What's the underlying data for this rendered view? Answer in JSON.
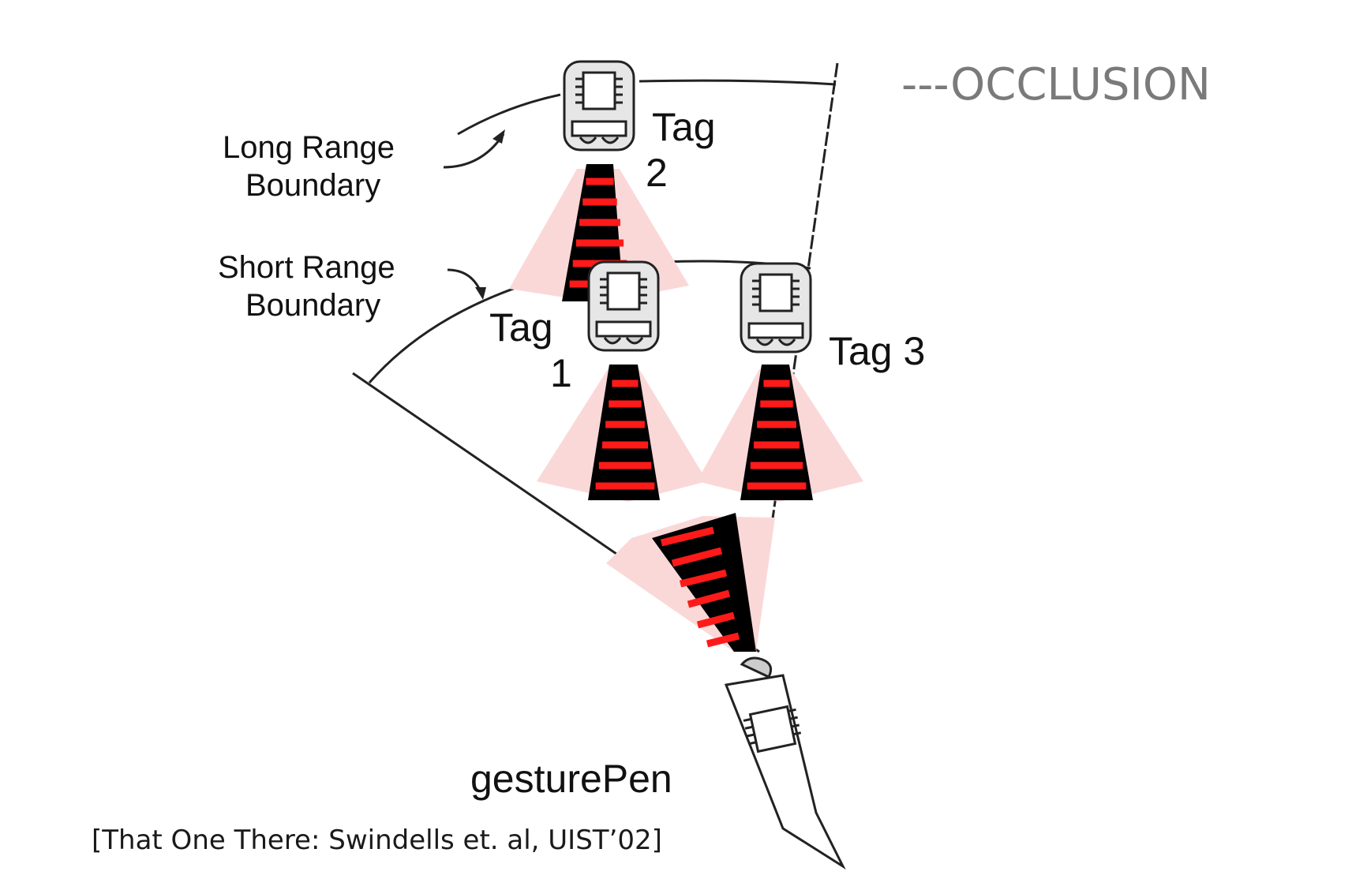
{
  "title": "---OCCLUSION",
  "citation": "[That One There: Swindells et. al, UIST’02]",
  "labels": {
    "long_range": [
      "Long Range",
      "Boundary"
    ],
    "short_range": [
      "Short Range",
      "Boundary"
    ],
    "tag1": [
      "Tag",
      "1"
    ],
    "tag2": [
      "Tag",
      "2"
    ],
    "tag3": "Tag 3",
    "pen": "gesturePen"
  },
  "colors": {
    "beam_fill": "#fbd8d8",
    "beam_core": "#000000",
    "beam_stripe": "#ff1a1a",
    "tag_body": "#e6e6e6",
    "title": "#7a7a7a"
  },
  "icons": [
    "chip-icon",
    "lens-icon"
  ]
}
